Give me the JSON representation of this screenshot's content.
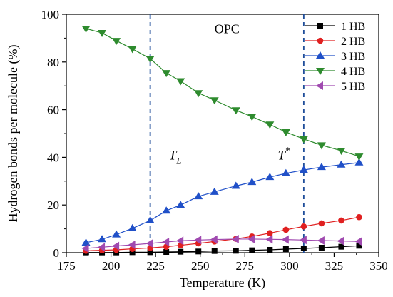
{
  "chart_data": {
    "type": "line",
    "xlabel": "Temperature (K)",
    "ylabel": "Hydrogen bonds per molecule (%)",
    "xlim": [
      175,
      350
    ],
    "ylim": [
      0,
      100
    ],
    "xticks": [
      175,
      200,
      225,
      250,
      275,
      300,
      325,
      350
    ],
    "yticks": [
      0,
      20,
      40,
      60,
      80,
      100
    ],
    "x": [
      186,
      195,
      203,
      212,
      222,
      231,
      239,
      249,
      258,
      270,
      279,
      289,
      298,
      308,
      318,
      329,
      339
    ],
    "series": [
      {
        "name": "1 HB",
        "color": "#000000",
        "marker": "square",
        "values": [
          0.1,
          0.1,
          0.1,
          0.2,
          0.2,
          0.3,
          0.4,
          0.5,
          0.7,
          0.8,
          1.0,
          1.2,
          1.5,
          1.8,
          2.1,
          2.5,
          2.9
        ]
      },
      {
        "name": "2 HB",
        "color": "#e02020",
        "marker": "circle",
        "values": [
          0.8,
          1.0,
          1.2,
          1.6,
          2.0,
          2.5,
          3.1,
          3.9,
          4.7,
          5.8,
          6.8,
          8.2,
          9.6,
          11.0,
          12.3,
          13.5,
          14.9
        ]
      },
      {
        "name": "3 HB",
        "color": "#2050c8",
        "marker": "triangle-up",
        "values": [
          4.2,
          5.6,
          7.6,
          10.2,
          13.5,
          17.6,
          20.0,
          23.6,
          25.5,
          28.0,
          29.6,
          31.7,
          33.3,
          34.7,
          35.9,
          36.9,
          37.8
        ]
      },
      {
        "name": "4 HB",
        "color": "#2e8b2e",
        "marker": "triangle-down",
        "values": [
          94.0,
          92.2,
          88.9,
          85.5,
          81.4,
          75.4,
          72.0,
          67.0,
          64.0,
          59.8,
          57.1,
          53.8,
          50.6,
          47.7,
          45.1,
          42.8,
          40.4
        ]
      },
      {
        "name": "5 HB",
        "color": "#a04ab0",
        "marker": "triangle-left",
        "values": [
          1.8,
          2.3,
          2.8,
          3.3,
          3.9,
          4.5,
          5.0,
          5.3,
          5.5,
          5.7,
          5.7,
          5.6,
          5.5,
          5.3,
          5.1,
          4.9,
          4.7
        ]
      }
    ],
    "vlines": [
      222,
      308
    ],
    "annotations": [
      {
        "text": "OPC",
        "style": "plain",
        "x": 265,
        "y": 92
      },
      {
        "text": "T",
        "sub": "L",
        "style": "italic",
        "x": 236,
        "y": 39
      },
      {
        "text": "T",
        "sup": "*",
        "style": "italic",
        "x": 297,
        "y": 39
      }
    ],
    "legend_position": "top-right",
    "grid": false
  }
}
